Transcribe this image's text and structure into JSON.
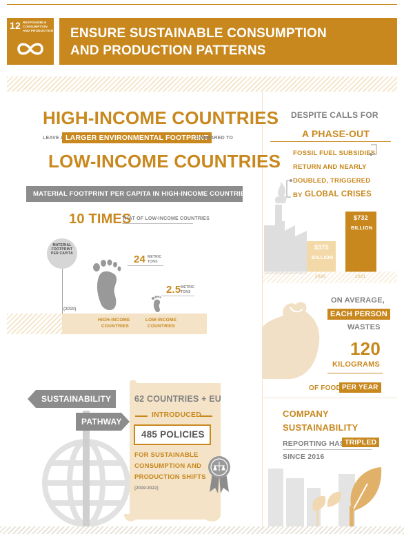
{
  "header": {
    "goal_number": "12",
    "goal_name_line1": "RESPONSIBLE",
    "goal_name_line2": "CONSUMPTION",
    "goal_name_line3": "AND PRODUCTION",
    "title_line1": "ENSURE SUSTAINABLE CONSUMPTION",
    "title_line2": "AND PRODUCTION PATTERNS"
  },
  "footprint": {
    "headline_top": "HIGH-INCOME COUNTRIES",
    "leave_a": "LEAVE A",
    "larger_footprint": "LARGER ENVIRONMENTAL FOOTPRINT",
    "compared_to": "COMPARED TO",
    "headline_bottom": "LOW-INCOME COUNTRIES",
    "material_bar": "MATERIAL FOOTPRINT PER CAPITA IN HIGH-INCOME COUNTRIES IS",
    "ten_times": "10 TIMES",
    "that_of": "THAT OF LOW-INCOME COUNTRIES",
    "axis_label": "MATERIAL FOOTPRINT PER CAPITA",
    "year": "(2019)",
    "high_value": "24",
    "low_value": "2.5",
    "unit_line1": "METRIC",
    "unit_line2": "TONS",
    "high_label_1": "HIGH-INCOME",
    "high_label_2": "COUNTRIES",
    "low_label_1": "LOW-INCOME",
    "low_label_2": "COUNTRIES"
  },
  "subsidies": {
    "line1": "DESPITE CALLS FOR",
    "line2": "A PHASE-OUT",
    "line3": "FOSSIL FUEL SUBSIDIES",
    "line4": "RETURN AND NEARLY",
    "line5": "DOUBLED, TRIGGERED",
    "line6_by": "BY",
    "line6_rest": "GLOBAL CRISES",
    "bars": [
      {
        "year": "2020",
        "amount": "$375",
        "unit": "BILLION",
        "value": 375
      },
      {
        "year": "2021",
        "amount": "$732",
        "unit": "BILLION",
        "value": 732
      }
    ]
  },
  "food_waste": {
    "on_average": "ON AVERAGE,",
    "each_person": "EACH PERSON",
    "wastes": "WASTES",
    "amount": "120",
    "unit": "KILOGRAMS",
    "of_food": "OF FOOD",
    "per_year": "PER YEAR"
  },
  "policies": {
    "sign1": "SUSTAINABILITY",
    "sign2": "PATHWAY",
    "countries": "62 COUNTRIES + EU",
    "introduced": "INTRODUCED",
    "policies": "485 POLICIES",
    "for_line1": "FOR SUSTAINABLE",
    "for_line2": "CONSUMPTION AND",
    "for_line3": "PRODUCTION SHIFTS",
    "period": "(2019-2022)"
  },
  "company": {
    "line1": "COMPANY",
    "line2": "SUSTAINABILITY",
    "line3_a": "REPORTING HAS",
    "line3_b": "TRIPLED",
    "line4": "SINCE 2016"
  },
  "colors": {
    "gold": "#c8881e",
    "light": "#f4e3c7",
    "grey": "#808080"
  }
}
